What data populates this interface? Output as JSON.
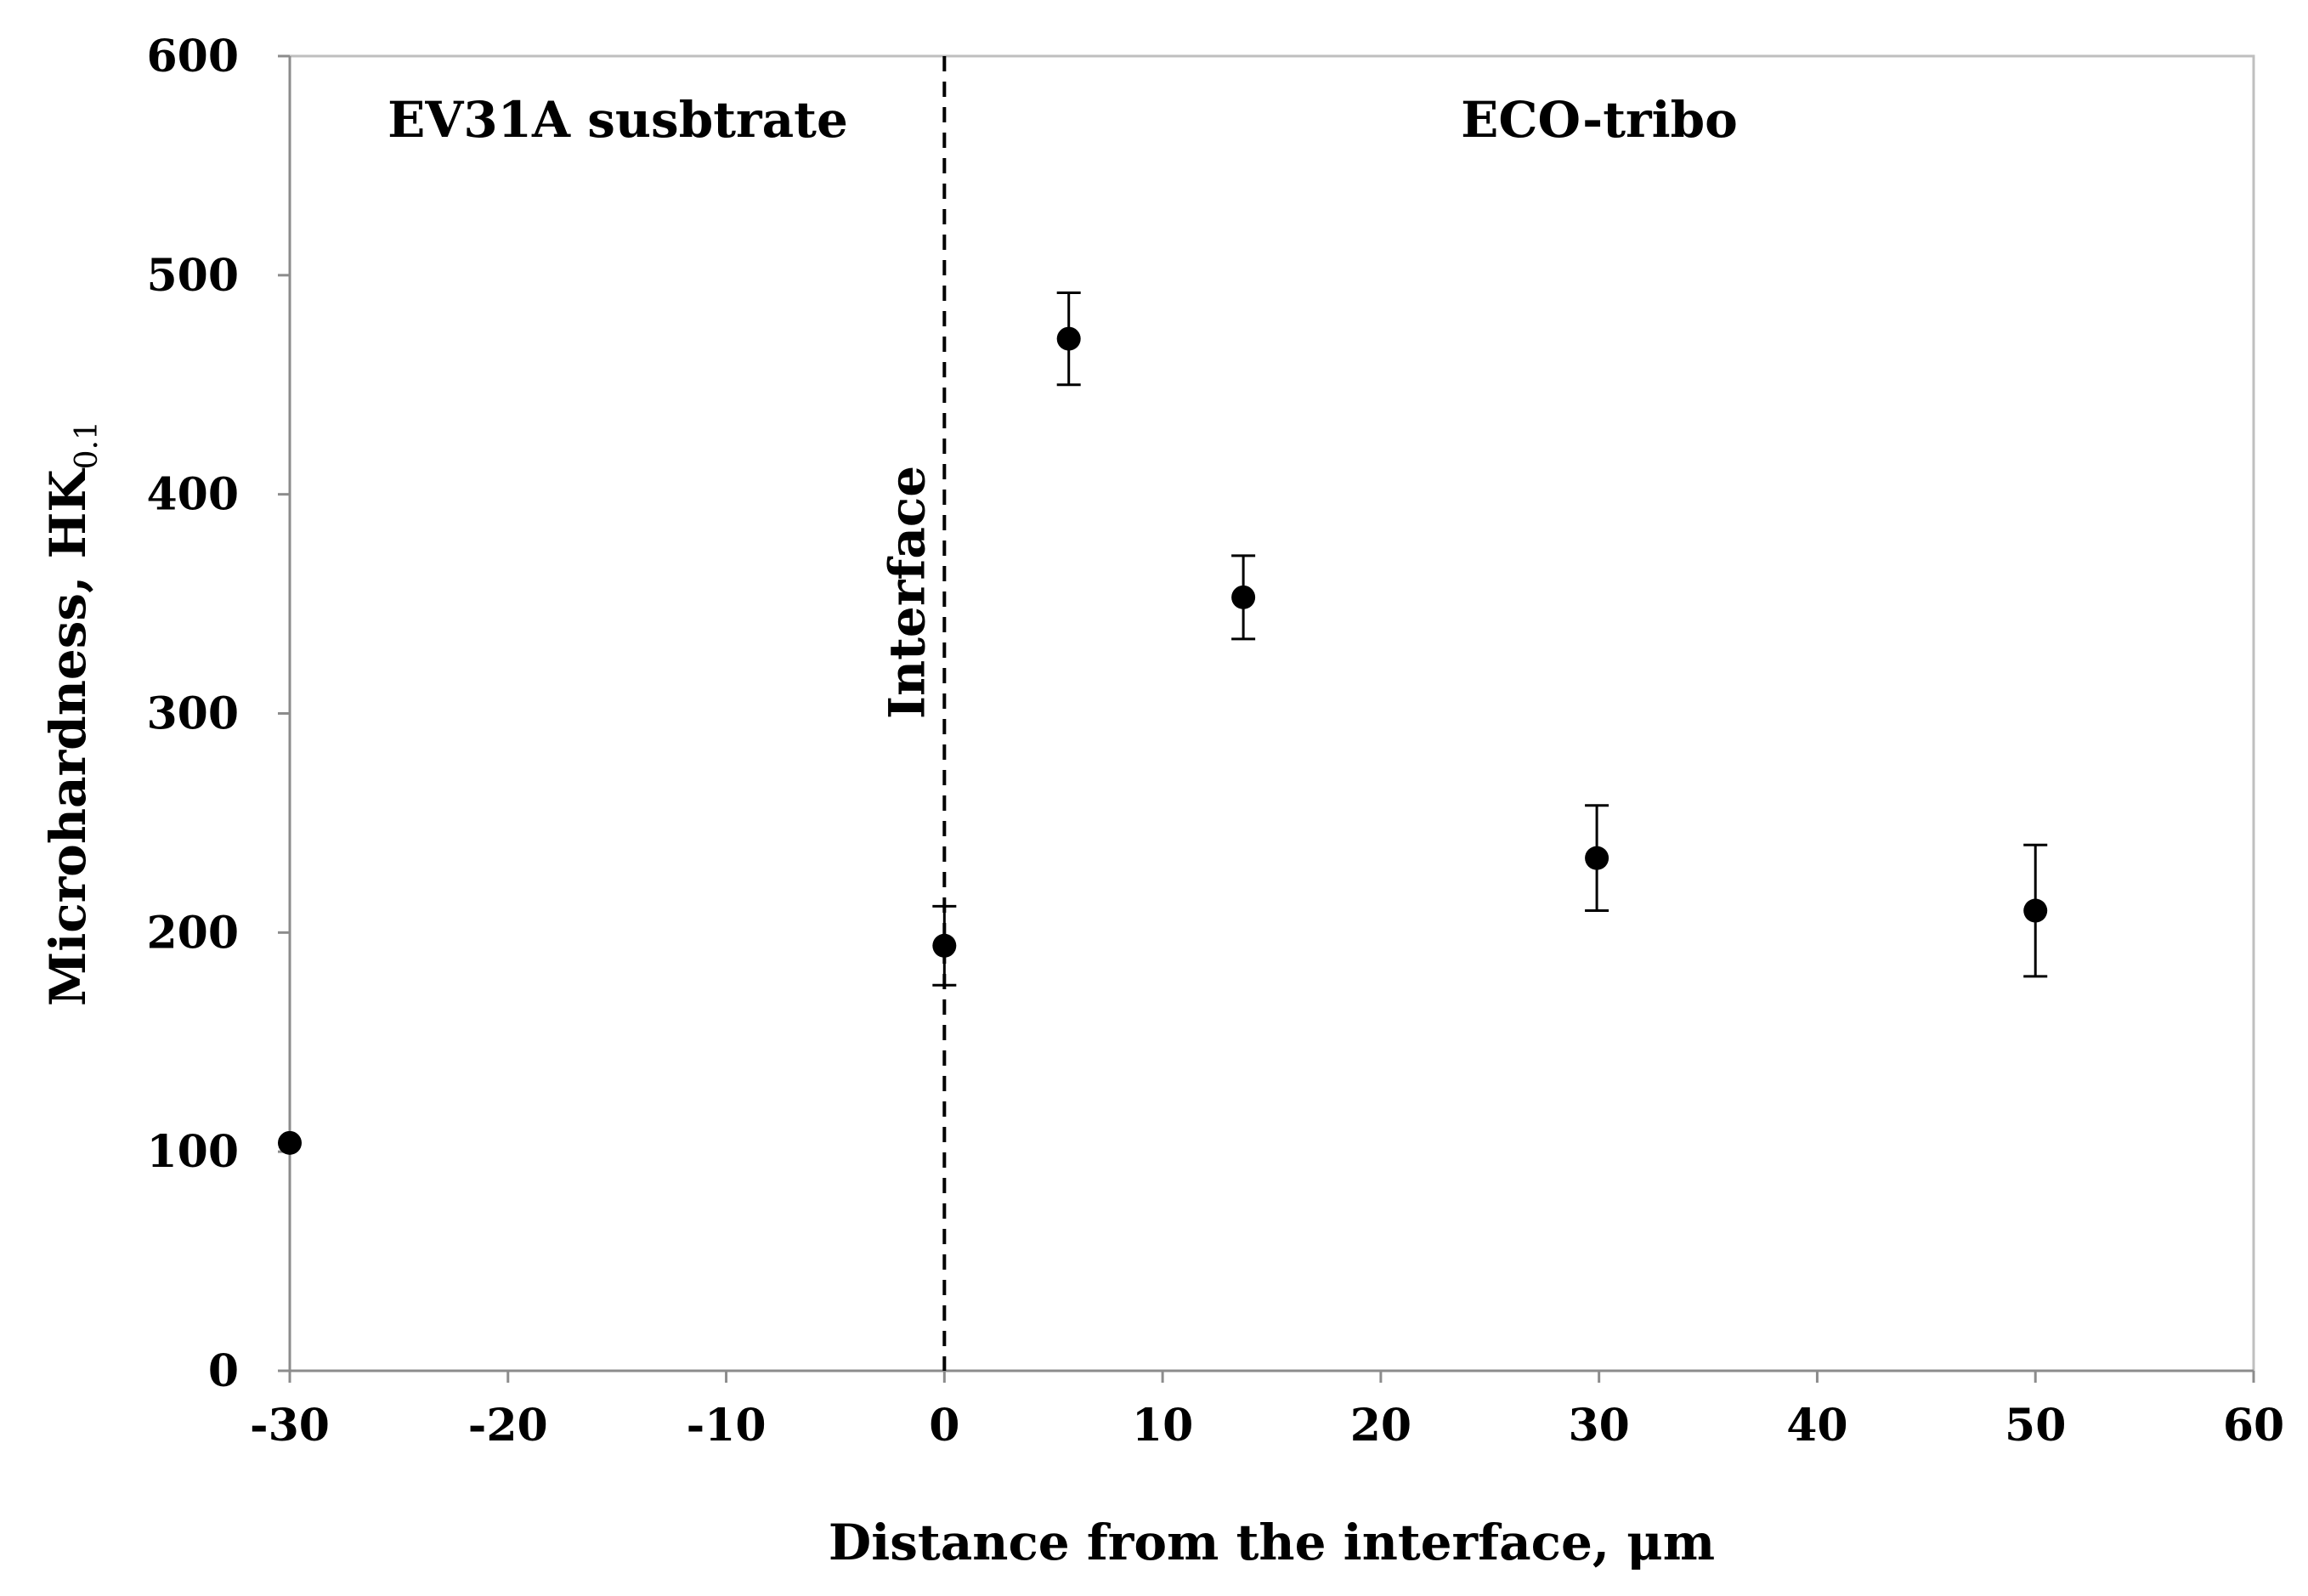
{
  "chart_data": {
    "type": "scatter",
    "title": "",
    "xlabel": "Distance from the interface, μm",
    "ylabel": "Microhardness, HK",
    "ylabel_subscript": "0.1",
    "xlim": [
      -30,
      60
    ],
    "ylim": [
      0,
      600
    ],
    "x_ticks": [
      -30,
      -20,
      -10,
      0,
      10,
      20,
      30,
      40,
      50,
      60
    ],
    "y_ticks": [
      0,
      100,
      200,
      300,
      400,
      500,
      600
    ],
    "grid": false,
    "series": [
      {
        "name": "Microhardness",
        "color": "#000000",
        "points": [
          {
            "x": -30,
            "y": 104,
            "err": 0
          },
          {
            "x": 0,
            "y": 194,
            "err": 18
          },
          {
            "x": 5.7,
            "y": 471,
            "err": 21
          },
          {
            "x": 13.7,
            "y": 353,
            "err": 19
          },
          {
            "x": 29.9,
            "y": 234,
            "err": 24
          },
          {
            "x": 50,
            "y": 210,
            "err": 30
          }
        ]
      }
    ],
    "annotations": {
      "interface_x": 0,
      "interface_label": "Interface",
      "left_region_label": "EV31A susbtrate",
      "right_region_label": "ECO-tribo"
    }
  }
}
